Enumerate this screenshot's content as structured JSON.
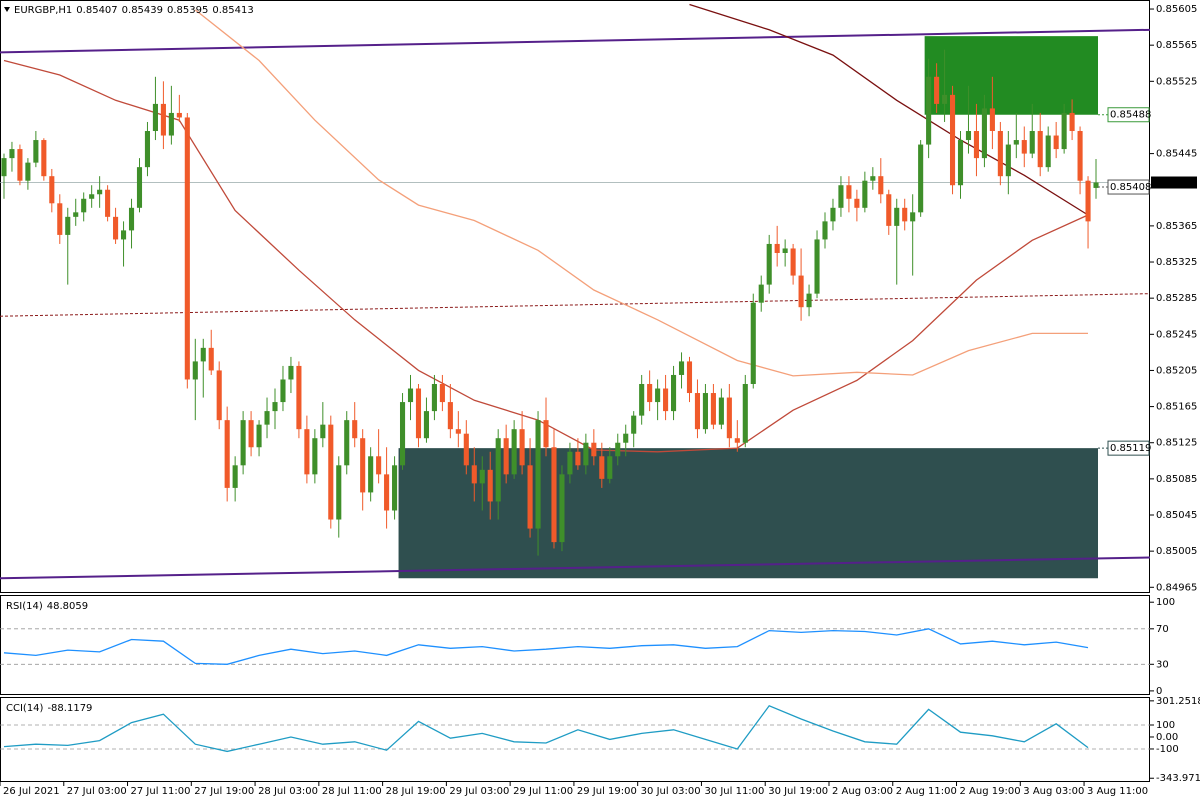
{
  "chart_data": [
    {
      "type": "candlestick",
      "title": "EURGBP,H1",
      "candles": {
        "open": [
          0.8542,
          0.8544,
          0.8545,
          0.85415,
          0.85435,
          0.8546,
          0.8542,
          0.8539,
          0.85355,
          0.85375,
          0.8538,
          0.85395,
          0.854,
          0.85405,
          0.85375,
          0.8535,
          0.8536,
          0.85385,
          0.8543,
          0.8547,
          0.855,
          0.85465,
          0.8549,
          0.85485,
          0.85195,
          0.85215,
          0.8523,
          0.85205,
          0.8515,
          0.85075,
          0.851,
          0.8515,
          0.8512,
          0.85145,
          0.8516,
          0.8517,
          0.85195,
          0.8521,
          0.8514,
          0.8509,
          0.8513,
          0.85145,
          0.8504,
          0.851,
          0.8515,
          0.8513,
          0.8507,
          0.8511,
          0.8509,
          0.8505,
          0.851,
          0.8517,
          0.85185,
          0.8513,
          0.8516,
          0.8519,
          0.8517,
          0.8514,
          0.85135,
          0.851,
          0.8508,
          0.85095,
          0.8506,
          0.8513,
          0.8509,
          0.8514,
          0.851,
          0.8503,
          0.8515,
          0.8512,
          0.85015,
          0.8509,
          0.85115,
          0.851,
          0.85125,
          0.8511,
          0.85085,
          0.8511,
          0.85125,
          0.85135,
          0.85155,
          0.8519,
          0.8517,
          0.85185,
          0.8516,
          0.852,
          0.85215,
          0.8518,
          0.8514,
          0.8518,
          0.85145,
          0.85175,
          0.8513,
          0.85125,
          0.8519,
          0.8528,
          0.853,
          0.85345,
          0.85335,
          0.8534,
          0.8531,
          0.85275,
          0.8529,
          0.8535,
          0.8537,
          0.85385,
          0.8541,
          0.85395,
          0.85385,
          0.85415,
          0.8542,
          0.854,
          0.85365,
          0.85385,
          0.8537,
          0.8538,
          0.85455,
          0.8553,
          0.855,
          0.8551,
          0.8541,
          0.8546,
          0.8547,
          0.8544,
          0.85495,
          0.8547,
          0.8542,
          0.85455,
          0.8546,
          0.85445,
          0.8547,
          0.8543,
          0.85465,
          0.8545,
          0.8549,
          0.8547,
          0.85415,
          0.85407
        ],
        "high": [
          0.85445,
          0.85458,
          0.85455,
          0.8544,
          0.8547,
          0.85462,
          0.85428,
          0.854,
          0.85385,
          0.85395,
          0.85402,
          0.8541,
          0.8542,
          0.8541,
          0.85385,
          0.8537,
          0.85395,
          0.8544,
          0.8548,
          0.8553,
          0.85525,
          0.8552,
          0.8551,
          0.8549,
          0.8524,
          0.8524,
          0.8525,
          0.85215,
          0.85165,
          0.8511,
          0.8516,
          0.8516,
          0.8515,
          0.85175,
          0.85185,
          0.8521,
          0.8522,
          0.85215,
          0.85155,
          0.8514,
          0.8517,
          0.85155,
          0.8511,
          0.8516,
          0.8517,
          0.8514,
          0.8512,
          0.8514,
          0.8512,
          0.8511,
          0.8518,
          0.852,
          0.8519,
          0.85175,
          0.852,
          0.852,
          0.8519,
          0.8516,
          0.8515,
          0.8512,
          0.8511,
          0.85115,
          0.8514,
          0.85145,
          0.8515,
          0.8516,
          0.8513,
          0.8516,
          0.85175,
          0.8514,
          0.851,
          0.85125,
          0.8513,
          0.85135,
          0.8514,
          0.85125,
          0.8512,
          0.85135,
          0.85145,
          0.8516,
          0.852,
          0.85205,
          0.85195,
          0.852,
          0.8521,
          0.85225,
          0.8522,
          0.85195,
          0.8519,
          0.8519,
          0.85185,
          0.8519,
          0.8515,
          0.852,
          0.8529,
          0.8531,
          0.85355,
          0.85365,
          0.8535,
          0.85345,
          0.8534,
          0.853,
          0.8536,
          0.8538,
          0.85395,
          0.8542,
          0.8542,
          0.85405,
          0.85425,
          0.8543,
          0.8544,
          0.85405,
          0.85395,
          0.85395,
          0.854,
          0.8546,
          0.8555,
          0.85545,
          0.8556,
          0.8552,
          0.8547,
          0.8552,
          0.855,
          0.8551,
          0.8553,
          0.8548,
          0.8547,
          0.8549,
          0.85475,
          0.855,
          0.8549,
          0.85475,
          0.8548,
          0.855,
          0.85505,
          0.85475,
          0.8542,
          0.85439
        ],
        "low": [
          0.85395,
          0.85425,
          0.8541,
          0.85405,
          0.8543,
          0.85415,
          0.8538,
          0.85345,
          0.853,
          0.85365,
          0.8537,
          0.85385,
          0.85385,
          0.8537,
          0.85345,
          0.8532,
          0.8534,
          0.8538,
          0.8542,
          0.8546,
          0.8545,
          0.85455,
          0.8548,
          0.85185,
          0.8515,
          0.85175,
          0.852,
          0.8514,
          0.8506,
          0.8506,
          0.8509,
          0.8511,
          0.8511,
          0.8513,
          0.8514,
          0.8516,
          0.8518,
          0.8513,
          0.8508,
          0.8508,
          0.8512,
          0.8503,
          0.8502,
          0.8509,
          0.8512,
          0.8505,
          0.8506,
          0.8508,
          0.8503,
          0.8504,
          0.85095,
          0.8515,
          0.8512,
          0.85125,
          0.8515,
          0.8516,
          0.8513,
          0.8512,
          0.8509,
          0.8506,
          0.8505,
          0.8504,
          0.8504,
          0.8508,
          0.85085,
          0.8509,
          0.8502,
          0.85,
          0.8511,
          0.85008,
          0.85005,
          0.8508,
          0.85095,
          0.8509,
          0.851,
          0.85075,
          0.8508,
          0.851,
          0.8511,
          0.8512,
          0.85145,
          0.8516,
          0.8515,
          0.8515,
          0.8515,
          0.85185,
          0.8517,
          0.8513,
          0.85135,
          0.8514,
          0.8514,
          0.8512,
          0.85115,
          0.8512,
          0.85185,
          0.8527,
          0.8529,
          0.8532,
          0.8532,
          0.853,
          0.8526,
          0.85265,
          0.85285,
          0.8534,
          0.8536,
          0.85375,
          0.8538,
          0.8537,
          0.8538,
          0.85405,
          0.8539,
          0.85355,
          0.853,
          0.8536,
          0.8531,
          0.85375,
          0.8544,
          0.8549,
          0.8548,
          0.854,
          0.85395,
          0.85445,
          0.8542,
          0.8543,
          0.8545,
          0.8541,
          0.854,
          0.8544,
          0.8543,
          0.8544,
          0.8542,
          0.85425,
          0.8544,
          0.85445,
          0.8546,
          0.854,
          0.8534,
          0.85395
        ],
        "close": [
          0.8544,
          0.8545,
          0.85415,
          0.85435,
          0.8546,
          0.8542,
          0.8539,
          0.85355,
          0.85375,
          0.8538,
          0.85395,
          0.854,
          0.85405,
          0.85375,
          0.8535,
          0.8536,
          0.85385,
          0.8543,
          0.8547,
          0.855,
          0.85465,
          0.8549,
          0.85485,
          0.85195,
          0.85215,
          0.8523,
          0.85205,
          0.8515,
          0.85075,
          0.851,
          0.8515,
          0.8512,
          0.85145,
          0.8516,
          0.8517,
          0.85195,
          0.8521,
          0.8514,
          0.8509,
          0.8513,
          0.85145,
          0.8504,
          0.851,
          0.8515,
          0.8513,
          0.8507,
          0.8511,
          0.8509,
          0.8505,
          0.851,
          0.8517,
          0.85185,
          0.8513,
          0.8516,
          0.8519,
          0.8517,
          0.8514,
          0.85135,
          0.851,
          0.8508,
          0.85095,
          0.8506,
          0.8513,
          0.8509,
          0.8514,
          0.851,
          0.8503,
          0.8515,
          0.8512,
          0.85015,
          0.8509,
          0.85115,
          0.851,
          0.85125,
          0.8511,
          0.85085,
          0.8511,
          0.85125,
          0.85135,
          0.85155,
          0.8519,
          0.8517,
          0.85185,
          0.8516,
          0.852,
          0.85215,
          0.8518,
          0.8514,
          0.8518,
          0.85145,
          0.85175,
          0.8513,
          0.85125,
          0.8519,
          0.8528,
          0.853,
          0.85345,
          0.85335,
          0.8534,
          0.8531,
          0.85275,
          0.8529,
          0.8535,
          0.8537,
          0.85385,
          0.8541,
          0.85395,
          0.85385,
          0.85415,
          0.8542,
          0.854,
          0.85365,
          0.85385,
          0.8537,
          0.8538,
          0.85455,
          0.8553,
          0.855,
          0.8551,
          0.8541,
          0.8546,
          0.8547,
          0.8544,
          0.85495,
          0.8547,
          0.8542,
          0.85455,
          0.8546,
          0.85445,
          0.8547,
          0.8543,
          0.85465,
          0.8545,
          0.8549,
          0.8547,
          0.85415,
          0.8537,
          0.85413
        ]
      },
      "bull_color": "#3f8f2a",
      "bear_color": "#f05a2a",
      "ylim": [
        0.84962,
        0.85615
      ],
      "yticks": [
        0.85605,
        0.85565,
        0.85525,
        0.85445,
        0.85365,
        0.85325,
        0.85285,
        0.85245,
        0.85205,
        0.85165,
        0.85125,
        0.85085,
        0.85045,
        0.85005,
        0.84965
      ],
      "xticks": [
        {
          "value": 0,
          "label": "26 Jul 2021"
        },
        {
          "value": 8,
          "label": "27 Jul 03:00"
        },
        {
          "value": 16,
          "label": "27 Jul 11:00"
        },
        {
          "value": 24,
          "label": "27 Jul 19:00"
        },
        {
          "value": 32,
          "label": "28 Jul 03:00"
        },
        {
          "value": 40,
          "label": "28 Jul 11:00"
        },
        {
          "value": 48,
          "label": "28 Jul 19:00"
        },
        {
          "value": 56,
          "label": "29 Jul 03:00"
        },
        {
          "value": 64,
          "label": "29 Jul 11:00"
        },
        {
          "value": 72,
          "label": "29 Jul 19:00"
        },
        {
          "value": 80,
          "label": "30 Jul 03:00"
        },
        {
          "value": 88,
          "label": "30 Jul 11:00"
        },
        {
          "value": 96,
          "label": "30 Jul 19:00"
        },
        {
          "value": 104,
          "label": "2 Aug 03:00"
        },
        {
          "value": 112,
          "label": "2 Aug 11:00"
        },
        {
          "value": 120,
          "label": "2 Aug 19:00"
        },
        {
          "value": 128,
          "label": "3 Aug 03:00"
        },
        {
          "value": 136,
          "label": "3 Aug 11:00"
        }
      ],
      "series": [
        {
          "color": "#7a1010",
          "x": [
            86,
            96,
            104,
            112,
            120,
            128,
            136
          ],
          "values": [
            0.8561,
            0.85582,
            0.85554,
            0.85504,
            0.8546,
            0.85421,
            0.85377
          ]
        },
        {
          "color": "#c04a3a",
          "x": [
            0,
            7,
            14,
            22,
            29,
            37,
            44,
            52,
            59,
            67,
            74,
            82,
            92,
            99,
            107,
            114,
            122,
            129,
            136
          ],
          "values": [
            0.85548,
            0.85532,
            0.85504,
            0.85482,
            0.85382,
            0.85316,
            0.85261,
            0.85205,
            0.85172,
            0.8515,
            0.85117,
            0.85115,
            0.85119,
            0.85161,
            0.85194,
            0.85238,
            0.85305,
            0.85349,
            0.85377
          ]
        },
        {
          "color": "#f4a07a",
          "x": [
            24,
            32,
            39,
            47,
            52,
            59,
            67,
            74,
            82,
            92,
            99,
            107,
            114,
            121,
            129,
            136
          ],
          "values": [
            0.85604,
            0.85548,
            0.85482,
            0.85416,
            0.85388,
            0.85371,
            0.85338,
            0.85294,
            0.85261,
            0.85216,
            0.85199,
            0.85203,
            0.852,
            0.85227,
            0.85246,
            0.85246
          ]
        }
      ],
      "boxes": [
        {
          "from": 50,
          "top": 0.85119,
          "bottom": 0.84975,
          "color": "#2f4f4f"
        },
        {
          "from": 116,
          "top": 0.85575,
          "bottom": 0.85488,
          "color": "#228b22"
        }
      ],
      "trendlines": [
        {
          "start": 0.85557,
          "end": 0.85582,
          "color": "#55208a",
          "dashed": false
        },
        {
          "start": 0.84975,
          "end": 0.84998,
          "color": "#55208a",
          "dashed": false
        },
        {
          "start": 0.85265,
          "end": 0.8529,
          "color": "#8b1a1a",
          "dashed": true
        }
      ],
      "levels": [
        {
          "value": 0.85488,
          "color": "#3a9a3a"
        },
        {
          "value": 0.85408,
          "color": "#555555"
        },
        {
          "value": 0.85119,
          "color": "#2f4f4f"
        }
      ]
    },
    {
      "type": "line",
      "title": "RSI(14)",
      "series": [
        {
          "color": "#1e90ff",
          "x": [
            0,
            4,
            8,
            12,
            16,
            20,
            24,
            28,
            32,
            36,
            40,
            44,
            48,
            52,
            56,
            60,
            64,
            68,
            72,
            76,
            80,
            84,
            88,
            92,
            96,
            100,
            104,
            108,
            112,
            116,
            120,
            124,
            128,
            132,
            136
          ],
          "values": [
            43,
            40,
            46,
            44,
            58,
            56,
            31,
            30,
            40,
            47,
            42,
            45,
            40,
            52,
            48,
            50,
            45,
            47,
            50,
            48,
            51,
            52,
            48,
            50,
            68,
            66,
            68,
            67,
            63,
            70,
            53,
            56,
            52,
            55,
            48.8059
          ]
        }
      ],
      "ylim": [
        -3.5,
        107
      ],
      "yticks": [
        100,
        70,
        30,
        0
      ],
      "levels": [
        70,
        30
      ]
    },
    {
      "type": "line",
      "title": "CCI(14)",
      "series": [
        {
          "color": "#1f9cc4",
          "x": [
            0,
            4,
            8,
            12,
            16,
            20,
            24,
            28,
            32,
            36,
            40,
            44,
            48,
            52,
            56,
            60,
            64,
            68,
            72,
            76,
            80,
            84,
            88,
            92,
            96,
            100,
            104,
            108,
            112,
            116,
            120,
            124,
            128,
            132,
            136
          ],
          "values": [
            -80,
            -60,
            -70,
            -30,
            120,
            190,
            -60,
            -120,
            -60,
            0,
            -60,
            -40,
            -110,
            130,
            -10,
            30,
            -40,
            -50,
            60,
            -20,
            30,
            60,
            -20,
            -100,
            260,
            150,
            50,
            -40,
            -60,
            230,
            40,
            10,
            -40,
            110,
            -88.1179
          ]
        }
      ],
      "ylim": [
        -367,
        325
      ],
      "yticks": [
        301.2518,
        100,
        {
          "value": 0,
          "label": "0.00"
        },
        -100,
        -343.9715
      ],
      "levels": [
        100,
        -100
      ]
    }
  ]
}
